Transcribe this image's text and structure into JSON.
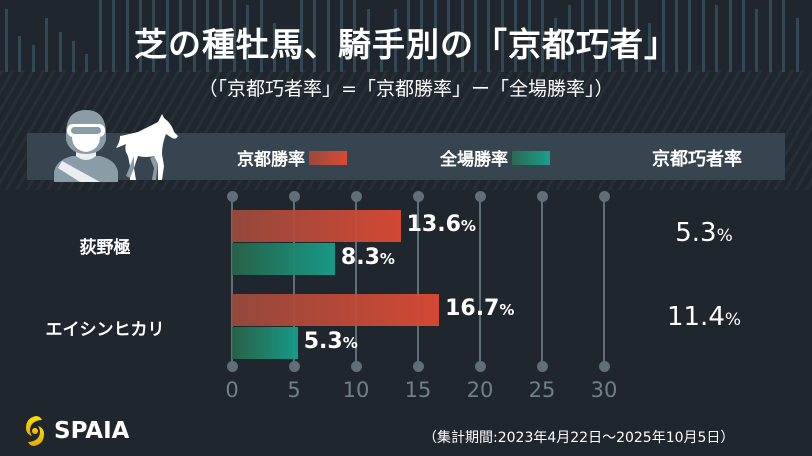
{
  "header": {
    "title": "芝の種牡馬、騎手別の「京都巧者」",
    "subtitle": "（「京都巧者率」=「京都勝率」ー「全場勝率」）"
  },
  "legend": {
    "kyoto_win_rate": "京都勝率",
    "all_venues_win_rate": "全場勝率",
    "kyoto_expert_rate": "京都巧者率"
  },
  "colors": {
    "background": "#1f262d",
    "header_band": "#36454f",
    "kyoto_bar": "#d94a35",
    "all_bar": "#17a08c",
    "axis": "#5f6e77",
    "logo_yellow": "#f5c400"
  },
  "chart_data": {
    "type": "bar",
    "orientation": "horizontal",
    "title": "芝の種牡馬、騎手別の「京都巧者」",
    "subtitle": "（「京都巧者率」=「京都勝率」ー「全場勝率」）",
    "categories": [
      "荻野極",
      "エイシンヒカリ"
    ],
    "series": [
      {
        "name": "京都勝率",
        "values": [
          13.6,
          16.7
        ],
        "labels": [
          "13.6",
          "16.7"
        ]
      },
      {
        "name": "全場勝率",
        "values": [
          8.3,
          5.3
        ],
        "labels": [
          "8.3",
          "5.3"
        ]
      }
    ],
    "kyoto_expert_rate": {
      "values": [
        5.3,
        11.4
      ],
      "labels": [
        "5.3",
        "11.4"
      ]
    },
    "unit": "%",
    "xlim": [
      0,
      30
    ],
    "xticks": [
      "0",
      "5",
      "10",
      "15",
      "20",
      "25",
      "30"
    ],
    "grid": true,
    "legend_position": "top"
  },
  "rows": [
    {
      "label": "荻野極",
      "kyoto": "13.6",
      "all": "8.3",
      "diff": "5.3"
    },
    {
      "label": "エイシンヒカリ",
      "kyoto": "16.7",
      "all": "5.3",
      "diff": "11.4"
    }
  ],
  "percent_sign": "%",
  "footer": {
    "brand": "SPAIA",
    "period": "（集計期間:2023年4月22日～2025年10月5日）"
  },
  "icons": {
    "jockey": "jockey-icon",
    "horse": "horse-icon",
    "logo": "spaia-logo-icon"
  }
}
